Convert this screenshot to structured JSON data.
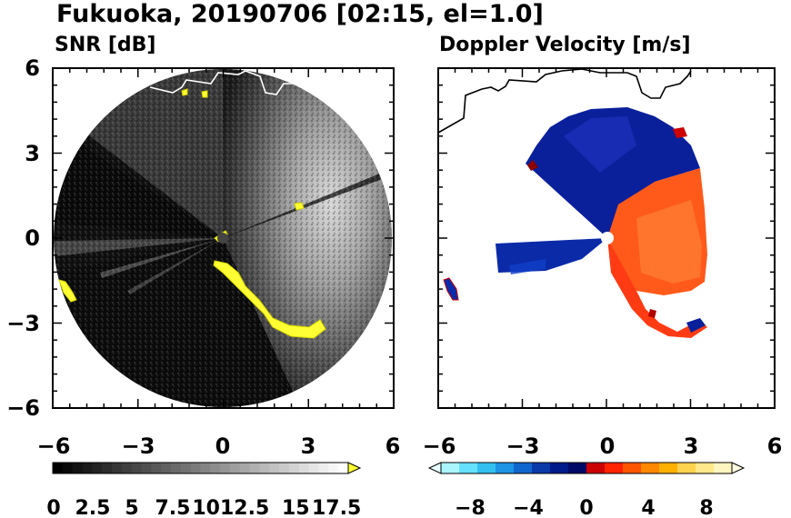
{
  "figure": {
    "title": "Fukuoka, 20190706 [02:15, el=1.0]"
  },
  "chart_data": [
    {
      "type": "heatmap",
      "title": "SNR [dB]",
      "xlim": [
        -6,
        6
      ],
      "ylim": [
        -6,
        6
      ],
      "x_ticks": [
        -6,
        -3,
        0,
        3,
        6
      ],
      "y_ticks": [
        6,
        3,
        0,
        -3,
        -6
      ],
      "x_tick_labels": [
        "−6",
        "−3",
        "0",
        "3",
        "6"
      ],
      "y_tick_labels": [
        "6",
        "3",
        "0",
        "−3",
        "−6"
      ],
      "range_ring_radius": 6,
      "colorbar": {
        "min": 0,
        "max": 18.75,
        "step": 0.625,
        "extend": "max",
        "low_color": "#000000",
        "high_color": "#ffffff",
        "extend_color": "#ffff33",
        "tick_values": [
          0,
          2.5,
          5,
          7.5,
          10,
          12.5,
          15,
          17.5
        ],
        "tick_labels": [
          "0",
          "2.5",
          "5",
          "7.5",
          "10",
          "12.5",
          "15",
          "17.5"
        ]
      },
      "grid": false
    },
    {
      "type": "heatmap",
      "title": "Doppler Velocity [m/s]",
      "xlim": [
        -6,
        6
      ],
      "ylim": [
        -6,
        6
      ],
      "x_ticks": [
        -6,
        -3,
        0,
        3,
        6
      ],
      "y_ticks": [
        6,
        3,
        0,
        -3,
        -6
      ],
      "x_tick_labels": [
        "−6",
        "−3",
        "0",
        "3",
        "6"
      ],
      "colorbar": {
        "min": -10,
        "max": 10,
        "extend": "both",
        "tick_values": [
          -8,
          -4,
          0,
          4,
          8
        ],
        "tick_labels": [
          "−8",
          "−4",
          "0",
          "4",
          "8"
        ],
        "colors": [
          "#aaf5ff",
          "#66e0ff",
          "#33c0f0",
          "#1f93e6",
          "#1166cc",
          "#0a3aa8",
          "#001a8c",
          "#000a66",
          "#cc0000",
          "#ff2200",
          "#ff5500",
          "#ff8800",
          "#ffb000",
          "#ffd24d",
          "#ffe88a",
          "#fff5c0"
        ]
      },
      "grid": false
    }
  ]
}
